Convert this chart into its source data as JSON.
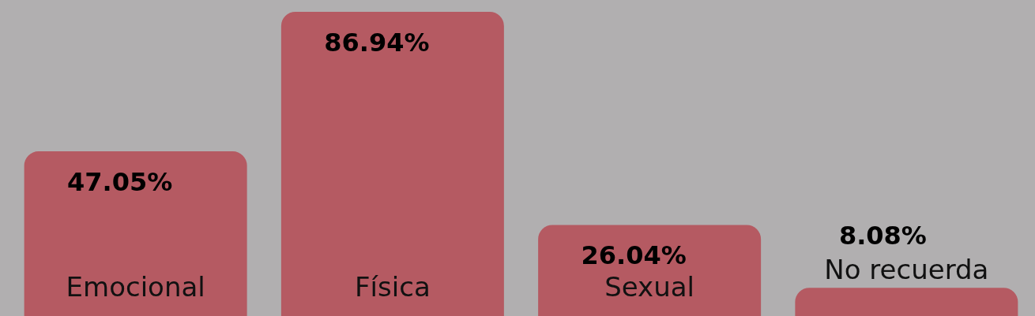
{
  "chart_data": {
    "type": "bar",
    "categories": [
      "Emocional",
      "Física",
      "Sexual",
      "No recuerda"
    ],
    "values": [
      47.05,
      86.94,
      26.04,
      8.08
    ],
    "color": "#b55a62",
    "value_labels": [
      "47.05%",
      "86.94%",
      "26.04%",
      "8.08%"
    ]
  }
}
